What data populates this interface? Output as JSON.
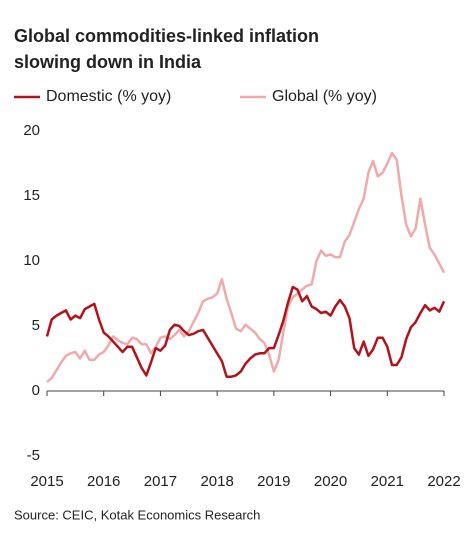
{
  "chart_data": {
    "type": "line",
    "title": [
      "Global commodities-linked inflation",
      "slowing down in India"
    ],
    "source": "Source: CEIC, Kotak Economics Research",
    "categories": [
      "2015",
      null,
      null,
      null,
      null,
      null,
      null,
      null,
      null,
      null,
      null,
      null,
      "2016",
      null,
      null,
      null,
      null,
      null,
      null,
      null,
      null,
      null,
      null,
      null,
      "2017",
      null,
      null,
      null,
      null,
      null,
      null,
      null,
      null,
      null,
      null,
      null,
      "2018",
      null,
      null,
      null,
      null,
      null,
      null,
      null,
      null,
      null,
      null,
      null,
      "2019",
      null,
      null,
      null,
      null,
      null,
      null,
      null,
      null,
      null,
      null,
      null,
      "2020",
      null,
      null,
      null,
      null,
      null,
      null,
      null,
      null,
      null,
      null,
      null,
      "2021",
      null,
      null,
      null,
      null,
      null,
      null,
      null,
      null,
      null,
      null,
      null,
      "2022"
    ],
    "series": [
      {
        "name": "Domestic (% yoy)",
        "color": "#b3121c",
        "values": [
          4.2,
          5.5,
          5.8,
          6.0,
          6.2,
          5.5,
          5.8,
          5.6,
          6.3,
          6.5,
          6.7,
          5.5,
          4.5,
          4.2,
          3.8,
          3.4,
          3.0,
          3.4,
          3.4,
          2.6,
          1.8,
          1.2,
          2.2,
          3.3,
          3.1,
          3.5,
          4.7,
          5.1,
          5.0,
          4.6,
          4.3,
          4.4,
          4.6,
          4.7,
          4.1,
          3.5,
          2.9,
          2.3,
          1.1,
          1.1,
          1.2,
          1.5,
          2.1,
          2.5,
          2.8,
          2.9,
          2.9,
          3.3,
          3.3,
          4.3,
          5.4,
          6.8,
          8.0,
          7.8,
          6.9,
          7.3,
          6.5,
          6.3,
          6.0,
          6.1,
          5.8,
          6.5,
          7.0,
          6.5,
          5.6,
          3.3,
          2.8,
          3.8,
          2.7,
          3.2,
          4.1,
          4.1,
          3.4,
          2.0,
          2.0,
          2.6,
          4.0,
          4.9,
          5.3,
          6.0,
          6.6,
          6.2,
          6.4,
          6.1,
          6.9
        ]
      },
      {
        "name": "Global (% yoy)",
        "color": "#f0aaaa",
        "values": [
          0.7,
          1.0,
          1.6,
          2.2,
          2.7,
          2.9,
          3.0,
          2.5,
          3.1,
          2.4,
          2.4,
          2.8,
          3.0,
          3.5,
          4.2,
          3.9,
          3.7,
          3.6,
          4.1,
          4.0,
          3.6,
          3.6,
          2.9,
          3.4,
          4.1,
          4.2,
          4.0,
          4.3,
          4.7,
          4.2,
          4.6,
          5.3,
          6.0,
          6.9,
          7.1,
          7.2,
          7.5,
          8.6,
          7.1,
          6.0,
          4.8,
          4.6,
          5.1,
          4.8,
          4.5,
          4.0,
          3.7,
          2.8,
          1.5,
          2.4,
          4.5,
          6.5,
          7.2,
          7.5,
          7.8,
          8.1,
          8.2,
          10.0,
          10.8,
          10.4,
          10.5,
          10.3,
          10.3,
          11.5,
          12.0,
          13.0,
          14.0,
          14.8,
          16.8,
          17.7,
          16.5,
          16.8,
          17.5,
          18.3,
          17.8,
          15.0,
          12.8,
          11.9,
          12.5,
          14.8,
          12.8,
          11.0,
          10.5,
          9.8,
          9.1
        ]
      }
    ],
    "ylim": [
      -5,
      20
    ],
    "yticks": [
      -5,
      0,
      5,
      10,
      15,
      20
    ],
    "grid": false
  }
}
